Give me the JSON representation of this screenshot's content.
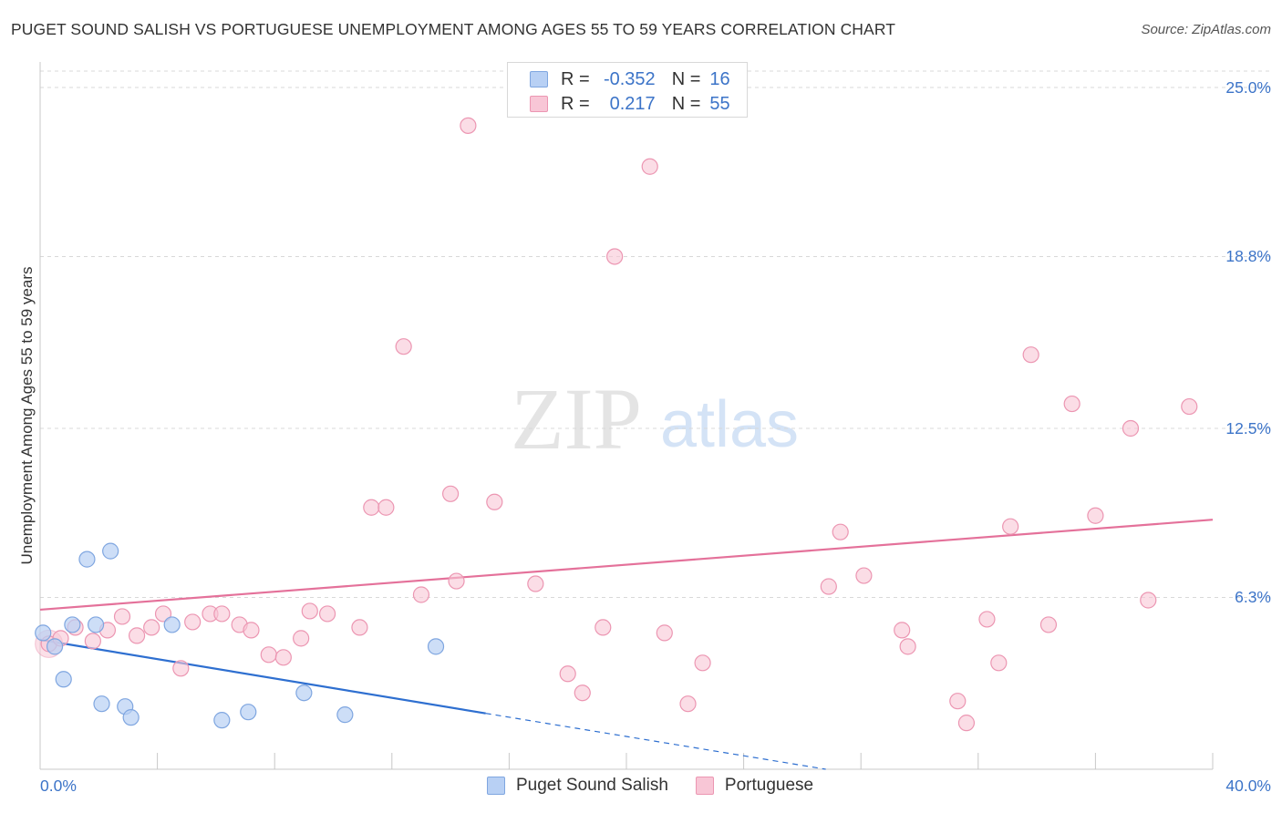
{
  "title": "PUGET SOUND SALISH VS PORTUGUESE UNEMPLOYMENT AMONG AGES 55 TO 59 YEARS CORRELATION CHART",
  "source": "Source: ZipAtlas.com",
  "watermark": {
    "zip": "ZIP",
    "atlas": "atlas"
  },
  "legend": {
    "series1": {
      "r_label": "R =",
      "r_value": "-0.352",
      "n_label": "N =",
      "n_value": "16"
    },
    "series2": {
      "r_label": "R =",
      "r_value": "0.217",
      "n_label": "N =",
      "n_value": "55"
    }
  },
  "colors": {
    "blue_fill": "#b8d0f4",
    "blue_stroke": "#7fa6e0",
    "blue_line": "#2e6fd0",
    "pink_fill": "#f8c6d6",
    "pink_stroke": "#ec96b2",
    "pink_line": "#e4719a",
    "grid": "#d8d8d8",
    "tick_text": "#3c74c8"
  },
  "chart_data": {
    "type": "scatter",
    "title": "PUGET SOUND SALISH VS PORTUGUESE UNEMPLOYMENT AMONG AGES 55 TO 59 YEARS CORRELATION CHART",
    "xlabel": "",
    "ylabel": "Unemployment Among Ages 55 to 59 years",
    "xlim": [
      0,
      40
    ],
    "ylim": [
      0,
      25.6
    ],
    "x_tick_labels": [
      "0.0%",
      "40.0%"
    ],
    "y_ticks": [
      6.3,
      12.5,
      18.8,
      25.0
    ],
    "y_tick_labels": [
      "6.3%",
      "12.5%",
      "18.8%",
      "25.0%"
    ],
    "series": [
      {
        "name": "Puget Sound Salish",
        "color": "blue",
        "trend": {
          "x0": 0,
          "y0": 4.75,
          "x1": 15.2,
          "y1": 2.05,
          "dash_to_x": 26.8,
          "dash_to_y": 0
        },
        "points": [
          [
            0.1,
            5.0
          ],
          [
            0.5,
            4.5
          ],
          [
            0.8,
            3.3
          ],
          [
            1.1,
            5.3
          ],
          [
            1.6,
            7.7
          ],
          [
            1.9,
            5.3
          ],
          [
            2.1,
            2.4
          ],
          [
            2.4,
            8.0
          ],
          [
            2.9,
            2.3
          ],
          [
            3.1,
            1.9
          ],
          [
            4.5,
            5.3
          ],
          [
            6.2,
            1.8
          ],
          [
            7.1,
            2.1
          ],
          [
            9.0,
            2.8
          ],
          [
            10.4,
            2.0
          ],
          [
            13.5,
            4.5
          ]
        ]
      },
      {
        "name": "Portuguese",
        "color": "pink",
        "trend": {
          "x0": 0,
          "y0": 5.85,
          "x1": 40,
          "y1": 9.15
        },
        "points": [
          [
            0.3,
            4.6
          ],
          [
            0.7,
            4.8
          ],
          [
            1.2,
            5.2
          ],
          [
            1.8,
            4.7
          ],
          [
            2.3,
            5.1
          ],
          [
            2.8,
            5.6
          ],
          [
            3.3,
            4.9
          ],
          [
            3.8,
            5.2
          ],
          [
            4.2,
            5.7
          ],
          [
            4.8,
            3.7
          ],
          [
            5.2,
            5.4
          ],
          [
            5.8,
            5.7
          ],
          [
            6.2,
            5.7
          ],
          [
            6.8,
            5.3
          ],
          [
            7.2,
            5.1
          ],
          [
            7.8,
            4.2
          ],
          [
            8.3,
            4.1
          ],
          [
            8.9,
            4.8
          ],
          [
            9.2,
            5.8
          ],
          [
            9.8,
            5.7
          ],
          [
            10.9,
            5.2
          ],
          [
            11.3,
            9.6
          ],
          [
            11.8,
            9.6
          ],
          [
            12.4,
            15.5
          ],
          [
            13.0,
            6.4
          ],
          [
            14.0,
            10.1
          ],
          [
            14.2,
            6.9
          ],
          [
            14.6,
            23.6
          ],
          [
            15.5,
            9.8
          ],
          [
            16.9,
            6.8
          ],
          [
            18.0,
            3.5
          ],
          [
            18.5,
            2.8
          ],
          [
            19.2,
            5.2
          ],
          [
            19.6,
            18.8
          ],
          [
            20.8,
            22.1
          ],
          [
            21.3,
            5.0
          ],
          [
            22.1,
            2.4
          ],
          [
            22.6,
            3.9
          ],
          [
            26.9,
            6.7
          ],
          [
            27.3,
            8.7
          ],
          [
            28.1,
            7.1
          ],
          [
            29.4,
            5.1
          ],
          [
            29.6,
            4.5
          ],
          [
            31.3,
            2.5
          ],
          [
            31.6,
            1.7
          ],
          [
            32.3,
            5.5
          ],
          [
            32.7,
            3.9
          ],
          [
            33.1,
            8.9
          ],
          [
            33.8,
            15.2
          ],
          [
            34.4,
            5.3
          ],
          [
            35.2,
            13.4
          ],
          [
            36.0,
            9.3
          ],
          [
            37.2,
            12.5
          ],
          [
            37.8,
            6.2
          ],
          [
            39.2,
            13.3
          ]
        ]
      }
    ]
  },
  "bottom_legend": {
    "series1": "Puget Sound Salish",
    "series2": "Portuguese"
  }
}
